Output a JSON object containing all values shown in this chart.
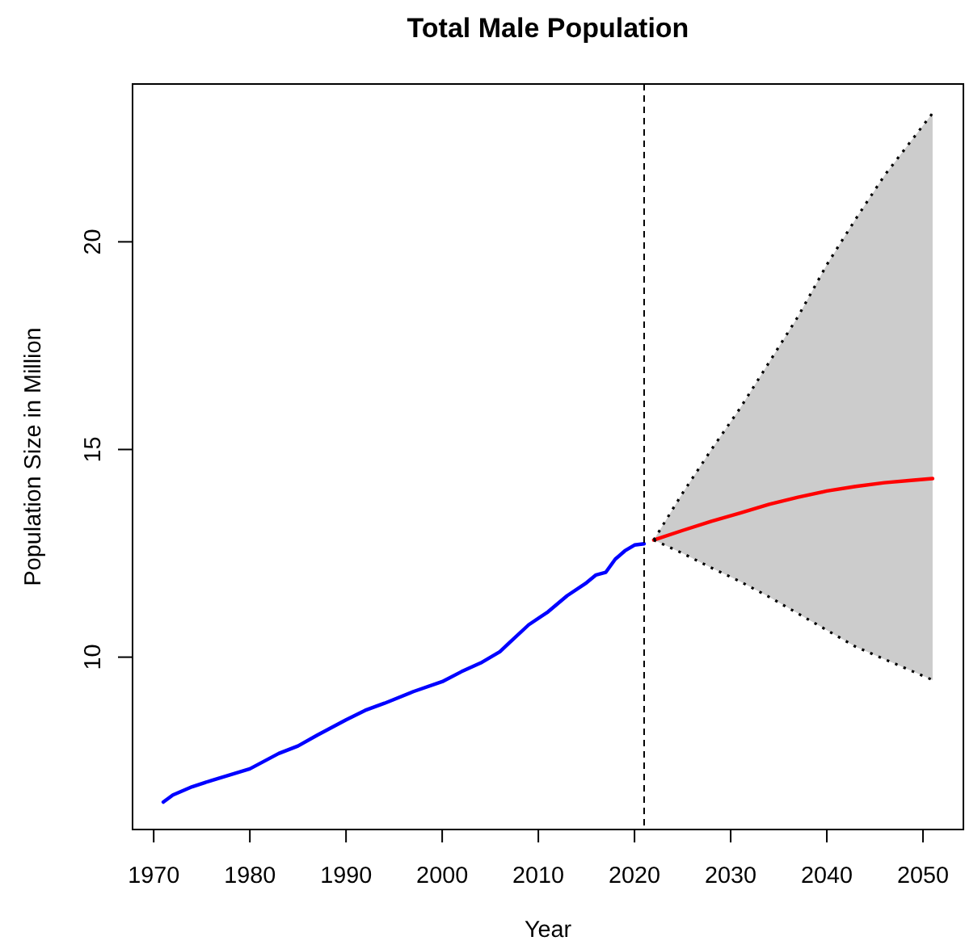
{
  "chart_data": {
    "type": "line",
    "title": "Total Male Population",
    "xlabel": "Year",
    "ylabel": "Population Size in Million",
    "xlim": [
      1967.8,
      2054.2
    ],
    "xticks": [
      1970,
      1980,
      1990,
      2000,
      2010,
      2020,
      2030,
      2040,
      2050
    ],
    "ylim": [
      5.85,
      23.8
    ],
    "yticks": [
      10,
      15,
      20
    ],
    "series": [
      {
        "color": "#0000ff",
        "x": [
          1971,
          1972,
          1974,
          1976,
          1978,
          1980,
          1983,
          1985,
          1987,
          1990,
          1992,
          1994,
          1997,
          2000,
          2002,
          2004,
          2006,
          2007,
          2009,
          2011,
          2013,
          2015,
          2016,
          2017,
          2018,
          2019,
          2020,
          2021
        ],
        "values": [
          6.51,
          6.68,
          6.88,
          7.03,
          7.17,
          7.31,
          7.68,
          7.86,
          8.12,
          8.49,
          8.72,
          8.89,
          9.17,
          9.41,
          9.65,
          9.86,
          10.13,
          10.35,
          10.78,
          11.09,
          11.48,
          11.79,
          11.98,
          12.04,
          12.36,
          12.56,
          12.7,
          12.73
        ]
      },
      {
        "color": "#ff0000",
        "x": [
          2022,
          2025,
          2028,
          2031,
          2034,
          2037,
          2040,
          2043,
          2046,
          2049,
          2051
        ],
        "values": [
          12.82,
          13.05,
          13.27,
          13.47,
          13.68,
          13.85,
          14.0,
          14.11,
          14.2,
          14.26,
          14.3
        ],
        "lower": [
          12.82,
          12.5,
          12.15,
          11.82,
          11.45,
          11.05,
          10.65,
          10.25,
          9.95,
          9.65,
          9.45
        ],
        "upper": [
          12.82,
          13.95,
          15.0,
          16.0,
          17.1,
          18.2,
          19.45,
          20.55,
          21.6,
          22.5,
          23.1
        ]
      },
      {
        "color": "#000000",
        "line_style": "dotted",
        "x": [
          2022,
          2025,
          2028,
          2031,
          2034,
          2037,
          2040,
          2043,
          2046,
          2049,
          2051
        ],
        "values": [
          12.82,
          12.5,
          12.15,
          11.82,
          11.45,
          11.05,
          10.65,
          10.25,
          9.95,
          9.65,
          9.45
        ]
      },
      {
        "color": "#000000",
        "line_style": "dotted",
        "x": [
          2022,
          2025,
          2028,
          2031,
          2034,
          2037,
          2040,
          2043,
          2046,
          2049,
          2051
        ],
        "values": [
          12.82,
          13.95,
          15.0,
          16.0,
          17.1,
          18.2,
          19.45,
          20.55,
          21.6,
          22.5,
          23.1
        ]
      }
    ],
    "ref_lines": [
      {
        "axis": "x",
        "value": 2021,
        "color": "#000000",
        "line_style": "dashed"
      }
    ],
    "line_style": "solid"
  }
}
